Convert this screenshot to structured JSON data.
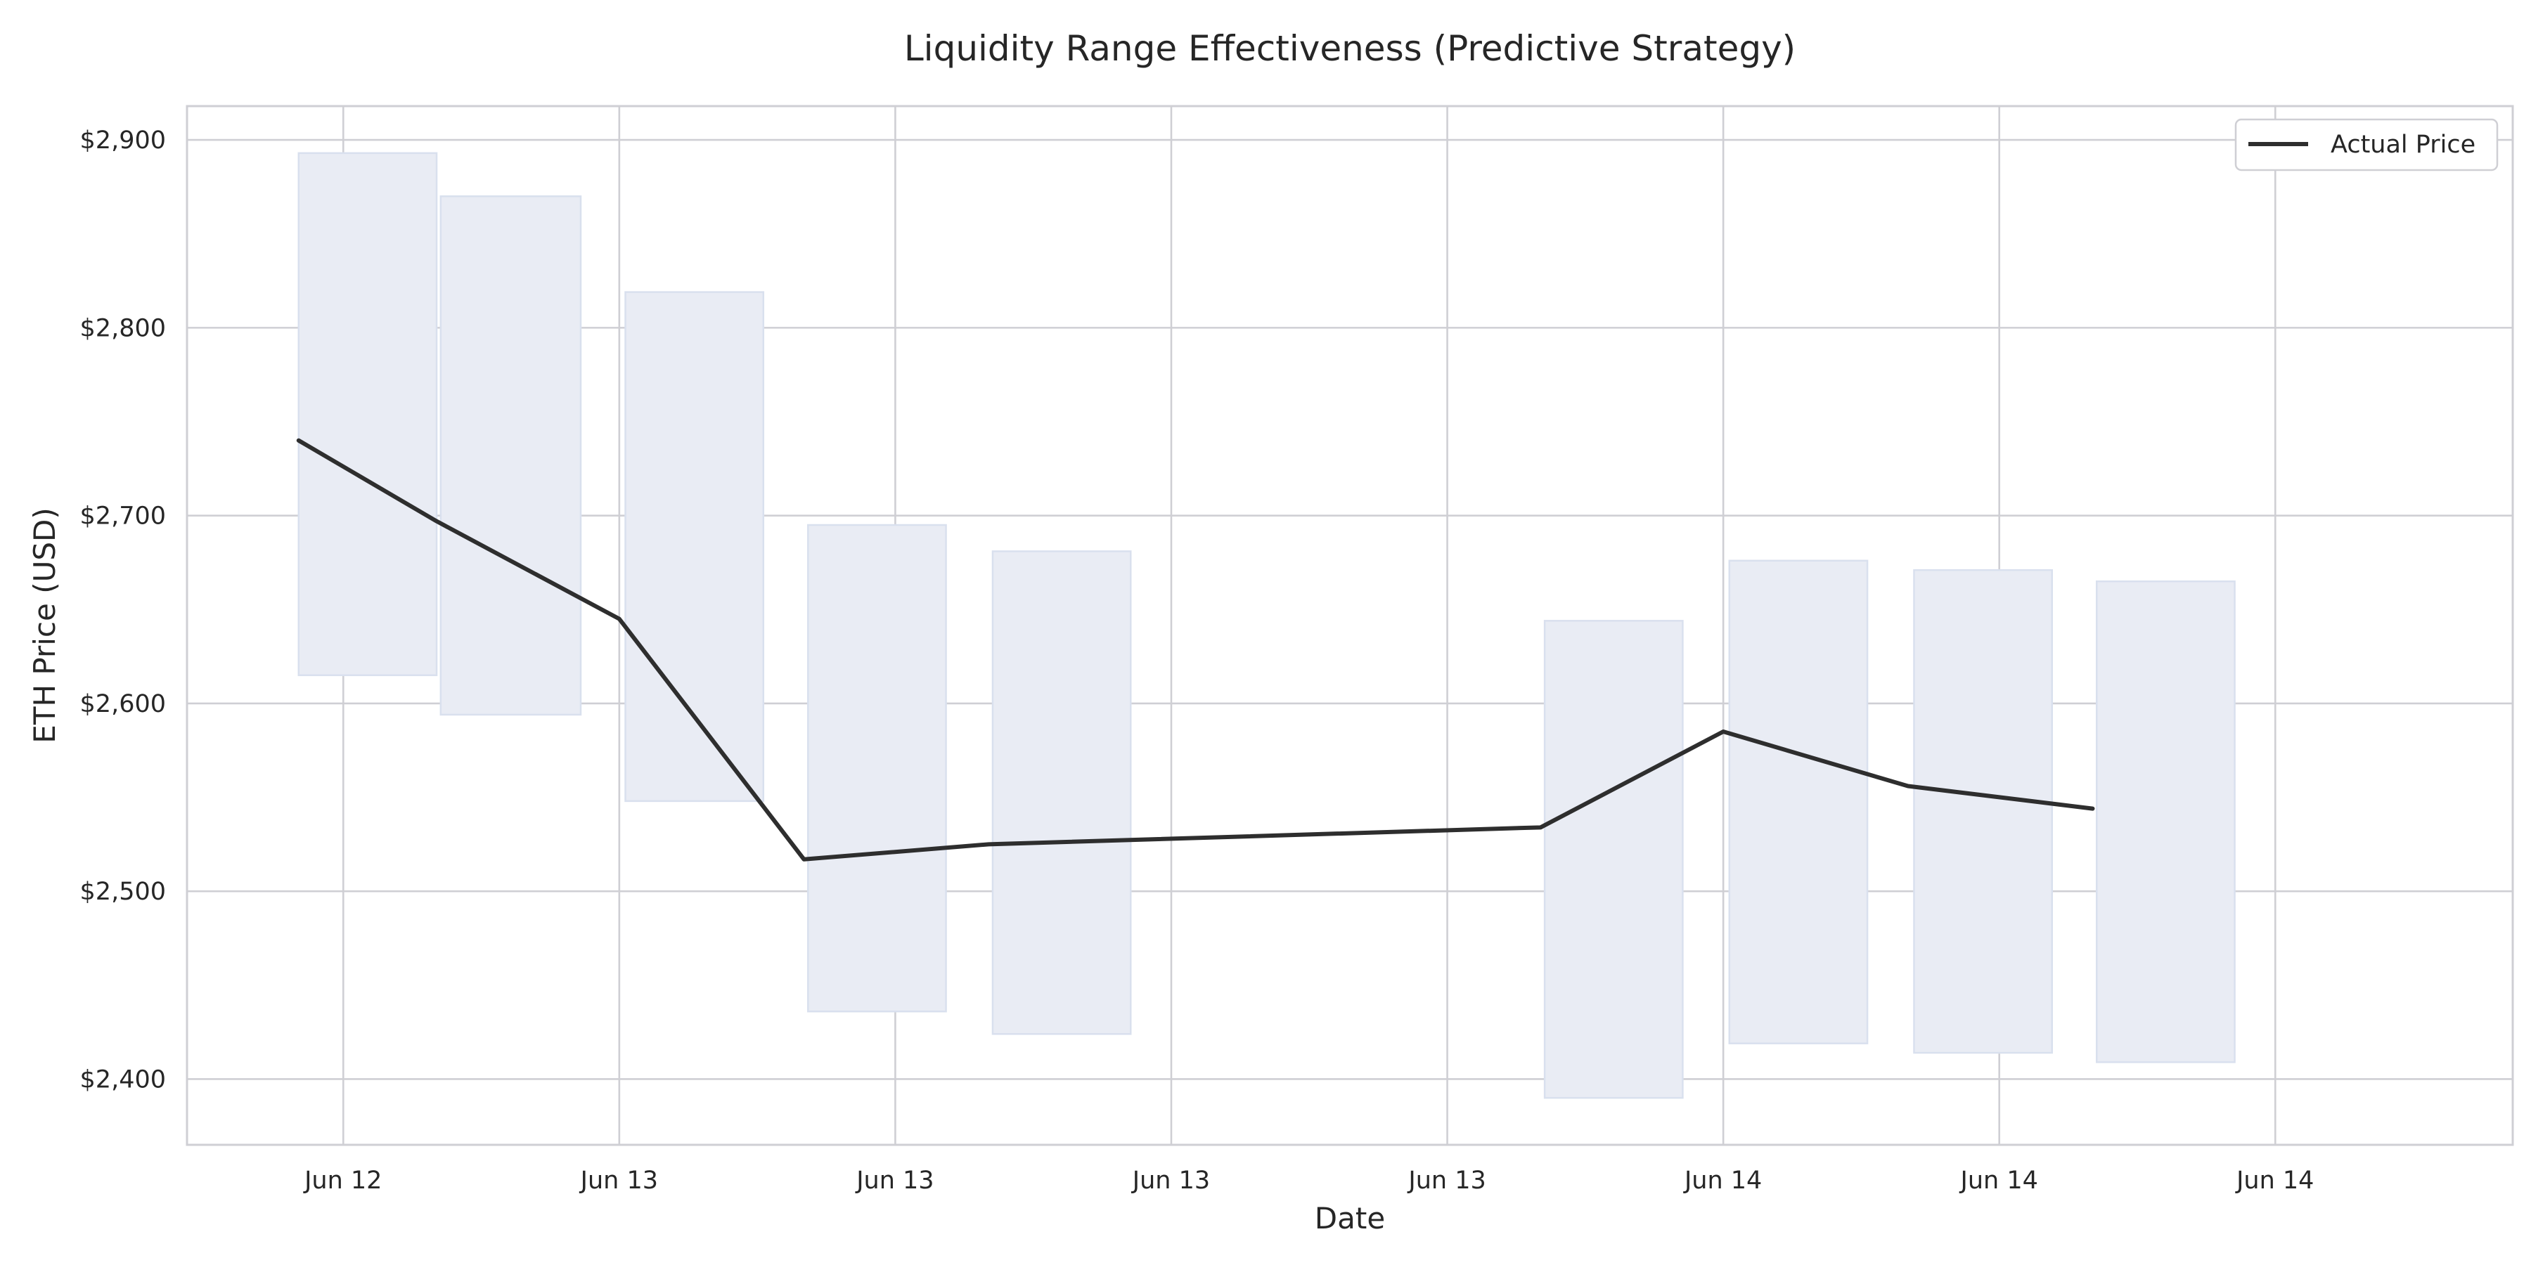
{
  "chart_data": {
    "type": "line",
    "title": "Liquidity Range Effectiveness (Predictive Strategy)",
    "xlabel": "Date",
    "ylabel": "ETH Price (USD)",
    "x_ticks": [
      "Jun 12",
      "Jun 13",
      "Jun 13",
      "Jun 13",
      "Jun 13",
      "Jun 14",
      "Jun 14",
      "Jun 14"
    ],
    "y_ticks": [
      "$2,400",
      "$2,500",
      "$2,600",
      "$2,700",
      "$2,800",
      "$2,900"
    ],
    "ylim": [
      2365,
      2918
    ],
    "x_unit": "hours since first x tick (Jun 12)",
    "xlim": [
      -7.7,
      106.9
    ],
    "x_tick_values": [
      0,
      13.6,
      27.2,
      40.8,
      54.4,
      68.0,
      81.6,
      95.2
    ],
    "grid": true,
    "legend": {
      "position": "top-right",
      "entries": [
        "Actual Price"
      ]
    },
    "series": [
      {
        "name": "Actual Price",
        "x": [
          -2.2,
          4.6,
          13.6,
          22.7,
          31.8,
          59.0,
          68.0,
          77.1,
          86.2
        ],
        "y": [
          2740,
          2697,
          2645,
          2517,
          2525,
          2534,
          2585,
          2556,
          2544
        ]
      }
    ],
    "ranges": [
      {
        "x_start": -2.2,
        "x_end": 4.6,
        "low": 2615,
        "high": 2893
      },
      {
        "x_start": 4.8,
        "x_end": 11.7,
        "low": 2594,
        "high": 2870
      },
      {
        "x_start": 13.9,
        "x_end": 20.7,
        "low": 2548,
        "high": 2819
      },
      {
        "x_start": 22.9,
        "x_end": 29.7,
        "low": 2436,
        "high": 2695
      },
      {
        "x_start": 32.0,
        "x_end": 38.8,
        "low": 2424,
        "high": 2681
      },
      {
        "x_start": 59.2,
        "x_end": 66.0,
        "low": 2390,
        "high": 2644
      },
      {
        "x_start": 68.3,
        "x_end": 75.1,
        "low": 2419,
        "high": 2676
      },
      {
        "x_start": 77.4,
        "x_end": 84.2,
        "low": 2414,
        "high": 2671
      },
      {
        "x_start": 86.4,
        "x_end": 93.2,
        "low": 2409,
        "high": 2665
      }
    ]
  }
}
